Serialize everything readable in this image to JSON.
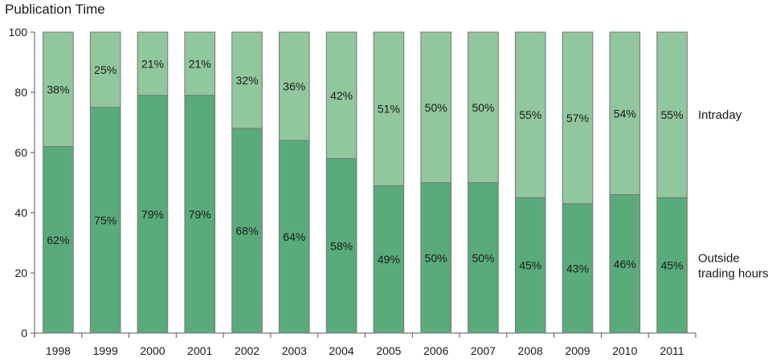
{
  "chart_data": {
    "type": "bar",
    "stacked": true,
    "title": "Publication Time",
    "categories": [
      "1998",
      "1999",
      "2000",
      "2001",
      "2002",
      "2003",
      "2004",
      "2005",
      "2006",
      "2007",
      "2008",
      "2009",
      "2010",
      "2011"
    ],
    "series": [
      {
        "name": "Outside trading hours",
        "legend_lines": [
          "Outside",
          "trading hours"
        ],
        "values": [
          62,
          75,
          79,
          79,
          68,
          64,
          58,
          49,
          50,
          50,
          45,
          43,
          46,
          45
        ],
        "labels": [
          "62%",
          "75%",
          "79%",
          "79%",
          "68%",
          "64%",
          "58%",
          "49%",
          "50%",
          "50%",
          "45%",
          "43%",
          "46%",
          "45%"
        ],
        "color": "#5aab7b"
      },
      {
        "name": "Intraday",
        "legend_lines": [
          "Intraday"
        ],
        "values": [
          38,
          25,
          21,
          21,
          32,
          36,
          42,
          51,
          50,
          50,
          55,
          57,
          54,
          55
        ],
        "labels": [
          "38%",
          "25%",
          "21%",
          "21%",
          "32%",
          "36%",
          "42%",
          "51%",
          "50%",
          "50%",
          "55%",
          "57%",
          "54%",
          "55%"
        ],
        "color": "#91c79d"
      }
    ],
    "ylim": [
      0,
      100
    ],
    "yticks": [
      0,
      20,
      40,
      60,
      80,
      100
    ],
    "ytick_labels": [
      "0",
      "20",
      "40",
      "60",
      "80",
      "100"
    ],
    "legend_position": "right",
    "grid": false
  }
}
